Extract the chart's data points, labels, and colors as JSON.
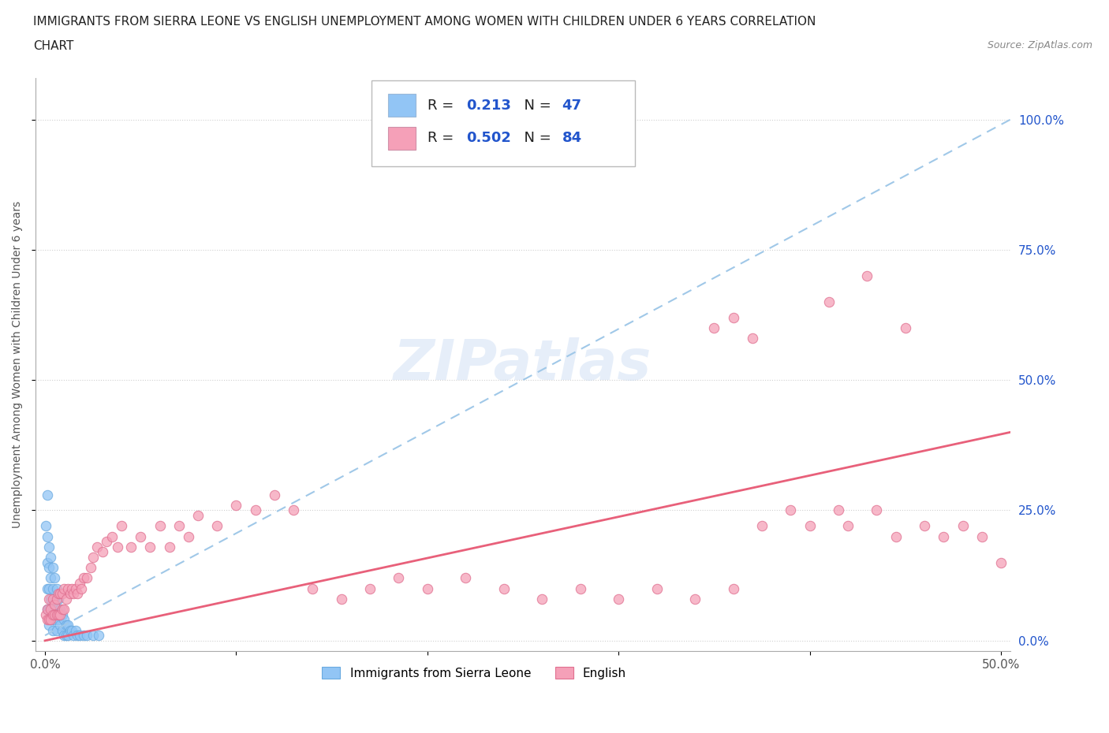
{
  "title_line1": "IMMIGRANTS FROM SIERRA LEONE VS ENGLISH UNEMPLOYMENT AMONG WOMEN WITH CHILDREN UNDER 6 YEARS CORRELATION",
  "title_line2": "CHART",
  "source_text": "Source: ZipAtlas.com",
  "watermark": "ZIPatlas",
  "ylabel": "Unemployment Among Women with Children Under 6 years",
  "xlim": [
    -0.005,
    0.505
  ],
  "ylim": [
    -0.02,
    1.08
  ],
  "xticks": [
    0.0,
    0.1,
    0.2,
    0.3,
    0.4,
    0.5
  ],
  "yticks": [
    0.0,
    0.25,
    0.5,
    0.75,
    1.0
  ],
  "xticklabels": [
    "0.0%",
    "",
    "",
    "",
    "",
    "50.0%"
  ],
  "yticklabels": [
    "0.0%",
    "25.0%",
    "50.0%",
    "75.0%",
    "100.0%"
  ],
  "series1_color": "#92c5f5",
  "series1_edge_color": "#6aaae0",
  "series2_color": "#f5a0b8",
  "series2_edge_color": "#e07090",
  "series1_line_color": "#a0c8e8",
  "series2_line_color": "#e8607a",
  "series1_R": 0.213,
  "series1_N": 47,
  "series2_R": 0.502,
  "series2_N": 84,
  "series1_label": "Immigrants from Sierra Leone",
  "series2_label": "English",
  "background_color": "#ffffff",
  "grid_color": "#d0d0d0",
  "title_color": "#222222",
  "axis_color": "#555555",
  "legend_R_color": "#2255cc",
  "ytick_color": "#2255cc",
  "series1_x": [
    0.0005,
    0.001,
    0.001,
    0.001,
    0.001,
    0.001,
    0.002,
    0.002,
    0.002,
    0.002,
    0.002,
    0.003,
    0.003,
    0.003,
    0.003,
    0.004,
    0.004,
    0.004,
    0.004,
    0.005,
    0.005,
    0.005,
    0.006,
    0.006,
    0.006,
    0.007,
    0.007,
    0.008,
    0.008,
    0.009,
    0.009,
    0.01,
    0.01,
    0.011,
    0.011,
    0.012,
    0.012,
    0.013,
    0.014,
    0.015,
    0.016,
    0.017,
    0.018,
    0.02,
    0.022,
    0.025,
    0.028
  ],
  "series1_y": [
    0.22,
    0.28,
    0.2,
    0.15,
    0.1,
    0.06,
    0.18,
    0.14,
    0.1,
    0.06,
    0.03,
    0.16,
    0.12,
    0.08,
    0.04,
    0.14,
    0.1,
    0.06,
    0.02,
    0.12,
    0.08,
    0.04,
    0.1,
    0.06,
    0.02,
    0.08,
    0.04,
    0.06,
    0.03,
    0.05,
    0.02,
    0.04,
    0.01,
    0.03,
    0.01,
    0.03,
    0.01,
    0.02,
    0.02,
    0.01,
    0.02,
    0.01,
    0.01,
    0.01,
    0.01,
    0.01,
    0.01
  ],
  "series2_x": [
    0.0005,
    0.001,
    0.001,
    0.002,
    0.002,
    0.003,
    0.003,
    0.004,
    0.004,
    0.005,
    0.005,
    0.006,
    0.006,
    0.007,
    0.007,
    0.008,
    0.008,
    0.009,
    0.009,
    0.01,
    0.01,
    0.011,
    0.012,
    0.013,
    0.014,
    0.015,
    0.016,
    0.017,
    0.018,
    0.019,
    0.02,
    0.022,
    0.024,
    0.025,
    0.027,
    0.03,
    0.032,
    0.035,
    0.038,
    0.04,
    0.045,
    0.05,
    0.055,
    0.06,
    0.065,
    0.07,
    0.075,
    0.08,
    0.09,
    0.1,
    0.11,
    0.12,
    0.13,
    0.14,
    0.155,
    0.17,
    0.185,
    0.2,
    0.22,
    0.24,
    0.26,
    0.28,
    0.3,
    0.32,
    0.34,
    0.36,
    0.375,
    0.39,
    0.4,
    0.415,
    0.42,
    0.435,
    0.445,
    0.46,
    0.47,
    0.48,
    0.49,
    0.5,
    0.41,
    0.43,
    0.45,
    0.35,
    0.36,
    0.37
  ],
  "series2_y": [
    0.05,
    0.04,
    0.06,
    0.04,
    0.08,
    0.04,
    0.06,
    0.05,
    0.08,
    0.05,
    0.07,
    0.05,
    0.08,
    0.05,
    0.09,
    0.05,
    0.09,
    0.06,
    0.09,
    0.06,
    0.1,
    0.08,
    0.1,
    0.09,
    0.1,
    0.09,
    0.1,
    0.09,
    0.11,
    0.1,
    0.12,
    0.12,
    0.14,
    0.16,
    0.18,
    0.17,
    0.19,
    0.2,
    0.18,
    0.22,
    0.18,
    0.2,
    0.18,
    0.22,
    0.18,
    0.22,
    0.2,
    0.24,
    0.22,
    0.26,
    0.25,
    0.28,
    0.25,
    0.1,
    0.08,
    0.1,
    0.12,
    0.1,
    0.12,
    0.1,
    0.08,
    0.1,
    0.08,
    0.1,
    0.08,
    0.1,
    0.22,
    0.25,
    0.22,
    0.25,
    0.22,
    0.25,
    0.2,
    0.22,
    0.2,
    0.22,
    0.2,
    0.15,
    0.65,
    0.7,
    0.6,
    0.6,
    0.62,
    0.58
  ],
  "trend1_x0": 0.0,
  "trend1_y0": 0.01,
  "trend1_x1": 0.505,
  "trend1_y1": 1.0,
  "trend2_x0": 0.0,
  "trend2_y0": 0.0,
  "trend2_x1": 0.505,
  "trend2_y1": 0.4
}
